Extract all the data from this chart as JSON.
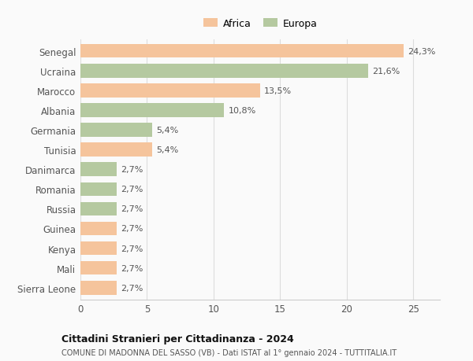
{
  "countries": [
    "Senegal",
    "Ucraina",
    "Marocco",
    "Albania",
    "Germania",
    "Tunisia",
    "Danimarca",
    "Romania",
    "Russia",
    "Guinea",
    "Kenya",
    "Mali",
    "Sierra Leone"
  ],
  "values": [
    24.3,
    21.6,
    13.5,
    10.8,
    5.4,
    5.4,
    2.7,
    2.7,
    2.7,
    2.7,
    2.7,
    2.7,
    2.7
  ],
  "labels": [
    "24,3%",
    "21,6%",
    "13,5%",
    "10,8%",
    "5,4%",
    "5,4%",
    "2,7%",
    "2,7%",
    "2,7%",
    "2,7%",
    "2,7%",
    "2,7%",
    "2,7%"
  ],
  "continents": [
    "Africa",
    "Europa",
    "Africa",
    "Europa",
    "Europa",
    "Africa",
    "Europa",
    "Europa",
    "Europa",
    "Africa",
    "Africa",
    "Africa",
    "Africa"
  ],
  "africa_color": "#F5C49C",
  "europa_color": "#B5C9A0",
  "background_color": "#FAFAFA",
  "title1": "Cittadini Stranieri per Cittadinanza - 2024",
  "title2": "COMUNE DI MADONNA DEL SASSO (VB) - Dati ISTAT al 1° gennaio 2024 - TUTTITALIA.IT",
  "xlim": [
    0,
    27
  ],
  "xticks": [
    0,
    5,
    10,
    15,
    20,
    25
  ]
}
